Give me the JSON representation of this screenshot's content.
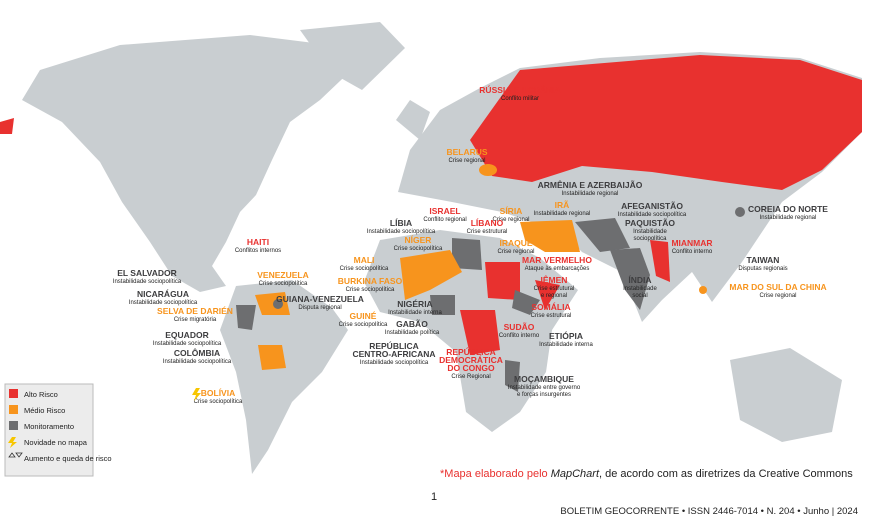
{
  "labels": [
    {
      "title": [
        "RÚSSIA E UCRÂNIA"
      ],
      "subtitle": [
        "Conflito militar"
      ],
      "level": "alto"
    },
    {
      "title": [
        "BELARUS"
      ],
      "subtitle": [
        "Crise regional"
      ],
      "level": "medio"
    },
    {
      "title": [
        "ARMÊNIA E AZERBAIJÃO"
      ],
      "subtitle": [
        "Instabilidade regional"
      ],
      "level": "monitor"
    },
    {
      "title": [
        "IRÃ"
      ],
      "subtitle": [
        "Instabilidade regional"
      ],
      "level": "medio"
    },
    {
      "title": [
        "AFEGANISTÃO"
      ],
      "subtitle": [
        "Instabilidade sociopolítica"
      ],
      "level": "monitor"
    },
    {
      "title": [
        "SÍRIA"
      ],
      "subtitle": [
        "Crise regional"
      ],
      "level": "medio"
    },
    {
      "title": [
        "ISRAEL"
      ],
      "subtitle": [
        "Conflito regional"
      ],
      "level": "alto"
    },
    {
      "title": [
        "COREIA DO NORTE"
      ],
      "subtitle": [
        "Instabilidade regional"
      ],
      "level": "monitor"
    },
    {
      "title": [
        "LÍBIA"
      ],
      "subtitle": [
        "Instabilidade sociopolítica"
      ],
      "level": "monitor"
    },
    {
      "title": [
        "LÍBANO"
      ],
      "subtitle": [
        "Crise estrutural"
      ],
      "level": "alto"
    },
    {
      "title": [
        "PAQUISTÃO"
      ],
      "subtitle": [
        "Instabilidade",
        "sociopolítica"
      ],
      "level": "monitor"
    },
    {
      "title": [
        "HAITI"
      ],
      "subtitle": [
        "Conflitos internos"
      ],
      "level": "alto"
    },
    {
      "title": [
        "NÍGER"
      ],
      "subtitle": [
        "Crise sociopolítica"
      ],
      "level": "medio"
    },
    {
      "title": [
        "IRAQUE"
      ],
      "subtitle": [
        "Crise regional"
      ],
      "level": "medio"
    },
    {
      "title": [
        "MIANMAR"
      ],
      "subtitle": [
        "Conflito interno"
      ],
      "level": "alto"
    },
    {
      "title": [
        "TAIWAN"
      ],
      "subtitle": [
        "Disputas regionais"
      ],
      "level": "monitor"
    },
    {
      "title": [
        "EL SALVADOR"
      ],
      "subtitle": [
        "Instabilidade sociopolítica"
      ],
      "level": "monitor"
    },
    {
      "title": [
        "VENEZUELA"
      ],
      "subtitle": [
        "Crise sociopolítica"
      ],
      "level": "medio"
    },
    {
      "title": [
        "MAR VERMELHO"
      ],
      "subtitle": [
        "Ataque às embarcações"
      ],
      "level": "alto"
    },
    {
      "title": [
        "ÍNDIA"
      ],
      "subtitle": [
        "Instabilidade",
        "social"
      ],
      "level": "monitor"
    },
    {
      "title": [
        "MALI"
      ],
      "subtitle": [
        "Crise sociopolítica"
      ],
      "level": "medio"
    },
    {
      "title": [
        "MAR DO SUL DA CHINA"
      ],
      "subtitle": [
        "Crise regional"
      ],
      "level": "medio"
    },
    {
      "title": [
        "BURKINA FASO"
      ],
      "subtitle": [
        "Crise sociopolítica"
      ],
      "level": "medio"
    },
    {
      "title": [
        "IÊMEN"
      ],
      "subtitle": [
        "Crise estrutural",
        "e regional"
      ],
      "level": "alto"
    },
    {
      "title": [
        "NICARÁGUA"
      ],
      "subtitle": [
        "Instabilidade sociopolítica"
      ],
      "level": "monitor"
    },
    {
      "title": [
        "GUIANA-VENEZUELA"
      ],
      "subtitle": [
        "Disputa regional"
      ],
      "level": "monitor"
    },
    {
      "title": [
        "NIGÉRIA"
      ],
      "subtitle": [
        "Instabilidade interna"
      ],
      "level": "monitor"
    },
    {
      "title": [
        "SOMÁLIA"
      ],
      "subtitle": [
        "Crise estrutural"
      ],
      "level": "alto"
    },
    {
      "title": [
        "SELVA DE DARIÉN"
      ],
      "subtitle": [
        "Crise migratória"
      ],
      "level": "medio"
    },
    {
      "title": [
        "GUINÉ"
      ],
      "subtitle": [
        "Crise sociopolítica"
      ],
      "level": "medio"
    },
    {
      "title": [
        "GABÃO"
      ],
      "subtitle": [
        "Instabilidade política"
      ],
      "level": "monitor"
    },
    {
      "title": [
        "SUDÃO"
      ],
      "subtitle": [
        "Conflito interno"
      ],
      "level": "alto"
    },
    {
      "title": [
        "EQUADOR"
      ],
      "subtitle": [
        "Instabilidade sociopolítica"
      ],
      "level": "monitor"
    },
    {
      "title": [
        "ETIÓPIA"
      ],
      "subtitle": [
        "Instabilidade interna"
      ],
      "level": "monitor"
    },
    {
      "title": [
        "REPÚBLICA",
        "CENTRO-AFRICANA"
      ],
      "subtitle": [
        "Instabilidade sociopolítica"
      ],
      "level": "monitor"
    },
    {
      "title": [
        "COLÔMBIA"
      ],
      "subtitle": [
        "Instabilidade sociopolítica"
      ],
      "level": "monitor"
    },
    {
      "title": [
        "REPÚBLICA",
        "DEMOCRÁTICA",
        "DO CONGO"
      ],
      "subtitle": [
        "Crise Regional"
      ],
      "level": "alto"
    },
    {
      "title": [
        "MOÇAMBIQUE"
      ],
      "subtitle": [
        "Instabilidade entre governo",
        "e forças insurgentes"
      ],
      "level": "monitor"
    },
    {
      "title": [
        "BOLÍVIA"
      ],
      "subtitle": [
        "Crise sociopolítica"
      ],
      "level": "medio"
    }
  ],
  "legend": [
    "Alto Risco",
    "Médio Risco",
    "Monitoramento",
    "Novidade no mapa",
    "Aumento e queda de risco"
  ],
  "footnote": {
    "before": "*Mapa elaborado pelo ",
    "italic": "MapChart",
    "after": ", de acordo com as diretrizes da Creative Commons"
  },
  "page_number": "1",
  "footer": "BOLETIM GEOCORRENTE • ISSN 2446-7014 • N. 204 • Junho | 2024"
}
